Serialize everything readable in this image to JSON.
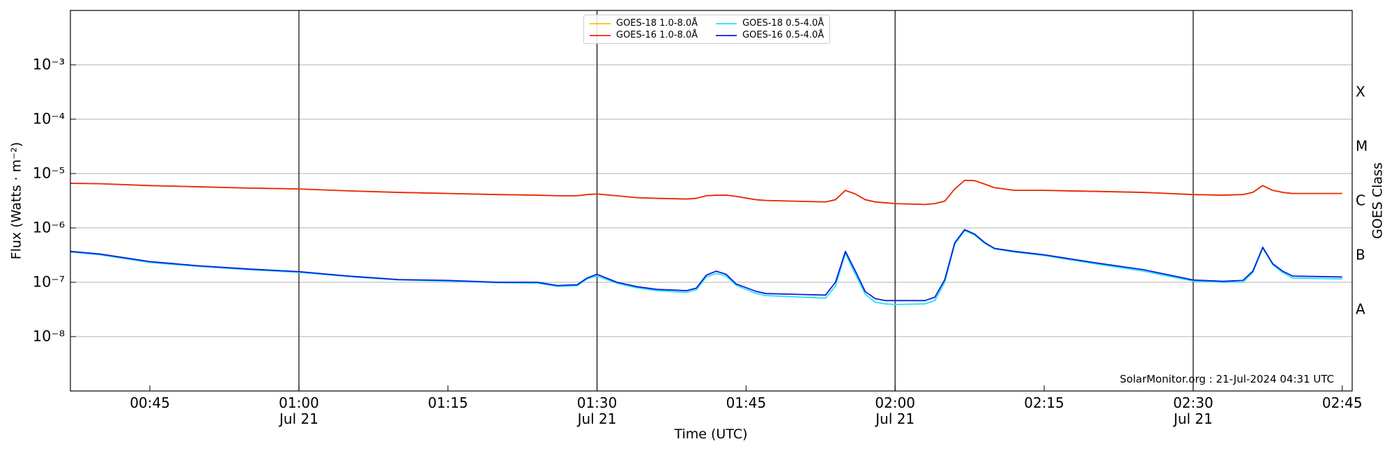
{
  "chart_data": {
    "type": "line",
    "xlabel": "Time (UTC)",
    "ylabel": "Flux (Watts · m⁻²)",
    "y2label": "GOES Class",
    "annotation": "SolarMonitor.org : 21-Jul-2024 04:31 UTC",
    "log_y": true,
    "grid": true,
    "legend": "upper center",
    "xlim": [
      "00:37",
      "02:46"
    ],
    "xticks": [
      "00:45",
      {
        "value": "01:00",
        "label": "01:00\nJul 21"
      },
      "01:15",
      {
        "value": "01:30",
        "label": "01:30\nJul 21"
      },
      "01:45",
      {
        "value": "02:00",
        "label": "02:00\nJul 21"
      },
      "02:15",
      {
        "value": "02:30",
        "label": "02:30\nJul 21"
      },
      "02:45"
    ],
    "vlines": [
      "01:00",
      "01:30",
      "02:00",
      "02:30"
    ],
    "ylim": [
      1e-09,
      0.01
    ],
    "yticks": [
      {
        "value": 1e-08,
        "label": "10⁻⁸"
      },
      {
        "value": 1e-07,
        "label": "10⁻⁷"
      },
      {
        "value": 1e-06,
        "label": "10⁻⁶"
      },
      {
        "value": 1e-05,
        "label": "10⁻⁵"
      },
      {
        "value": 0.0001,
        "label": "10⁻⁴"
      },
      {
        "value": 0.001,
        "label": "10⁻³"
      }
    ],
    "y2lim": [
      1e-09,
      0.01
    ],
    "y2ticks": [
      {
        "value": 3.162e-08,
        "label": "A"
      },
      {
        "value": 3.162e-07,
        "label": "B"
      },
      {
        "value": 3.162e-06,
        "label": "C"
      },
      {
        "value": 3.162e-05,
        "label": "M"
      },
      {
        "value": 0.0003162,
        "label": "X"
      }
    ],
    "x": [
      "00:37",
      "00:40",
      "00:45",
      "00:50",
      "00:55",
      "01:00",
      "01:05",
      "01:10",
      "01:15",
      "01:20",
      "01:24",
      "01:26",
      "01:28",
      "01:29",
      "01:30",
      "01:32",
      "01:34",
      "01:36",
      "01:39",
      "01:40",
      "01:41",
      "01:42",
      "01:43",
      "01:44",
      "01:46",
      "01:47",
      "01:53",
      "01:54",
      "01:55",
      "01:56",
      "01:57",
      "01:58",
      "01:59",
      "02:00",
      "02:03",
      "02:04",
      "02:05",
      "02:06",
      "02:07",
      "02:08",
      "02:09",
      "02:10",
      "02:12",
      "02:15",
      "02:20",
      "02:25",
      "02:30",
      "02:33",
      "02:35",
      "02:36",
      "02:37",
      "02:38",
      "02:39",
      "02:40",
      "02:45"
    ],
    "series": [
      {
        "name": "GOES-18 1.0-8.0Å",
        "color": "#ffc000",
        "values": [
          6.6e-06,
          6.5e-06,
          6e-06,
          5.7e-06,
          5.4e-06,
          5.2e-06,
          4.8e-06,
          4.5e-06,
          4.3e-06,
          4.1e-06,
          4e-06,
          3.9e-06,
          3.9e-06,
          4.1e-06,
          4.2e-06,
          3.9e-06,
          3.6e-06,
          3.5e-06,
          3.4e-06,
          3.5e-06,
          3.9e-06,
          4e-06,
          4e-06,
          3.8e-06,
          3.3e-06,
          3.2e-06,
          3e-06,
          3.3e-06,
          4.9e-06,
          4.2e-06,
          3.3e-06,
          3e-06,
          2.9e-06,
          2.8e-06,
          2.7e-06,
          2.8e-06,
          3.1e-06,
          5.2e-06,
          7.5e-06,
          7.4e-06,
          6.4e-06,
          5.5e-06,
          4.9e-06,
          4.9e-06,
          4.7e-06,
          4.5e-06,
          4.1e-06,
          4e-06,
          4.1e-06,
          4.5e-06,
          6e-06,
          4.9e-06,
          4.5e-06,
          4.3e-06,
          4.3e-06
        ]
      },
      {
        "name": "GOES-16 1.0-8.0Å",
        "color": "#e8280c",
        "values": [
          6.6e-06,
          6.5e-06,
          6e-06,
          5.7e-06,
          5.4e-06,
          5.2e-06,
          4.8e-06,
          4.5e-06,
          4.3e-06,
          4.1e-06,
          4e-06,
          3.9e-06,
          3.9e-06,
          4.1e-06,
          4.2e-06,
          3.9e-06,
          3.6e-06,
          3.5e-06,
          3.4e-06,
          3.5e-06,
          3.9e-06,
          4e-06,
          4e-06,
          3.8e-06,
          3.3e-06,
          3.2e-06,
          3e-06,
          3.3e-06,
          4.9e-06,
          4.2e-06,
          3.3e-06,
          3e-06,
          2.9e-06,
          2.8e-06,
          2.7e-06,
          2.8e-06,
          3.1e-06,
          5.2e-06,
          7.5e-06,
          7.4e-06,
          6.4e-06,
          5.5e-06,
          4.9e-06,
          4.9e-06,
          4.7e-06,
          4.5e-06,
          4.1e-06,
          4e-06,
          4.1e-06,
          4.5e-06,
          6e-06,
          4.9e-06,
          4.5e-06,
          4.3e-06,
          4.3e-06
        ]
      },
      {
        "name": "GOES-18 0.5-4.0Å",
        "color": "#22e3f0",
        "values": [
          3.6e-07,
          3.2e-07,
          2.3e-07,
          1.95e-07,
          1.7e-07,
          1.52e-07,
          1.27e-07,
          1.1e-07,
          1.05e-07,
          9.8e-08,
          9.6e-08,
          8.4e-08,
          8.6e-08,
          1.15e-07,
          1.3e-07,
          9.6e-08,
          7.9e-08,
          7e-08,
          6.5e-08,
          7.3e-08,
          1.25e-07,
          1.45e-07,
          1.3e-07,
          8.8e-08,
          6.2e-08,
          5.7e-08,
          5.1e-08,
          8.5e-08,
          3.4e-07,
          1.4e-07,
          6e-08,
          4.3e-08,
          4e-08,
          3.9e-08,
          4e-08,
          4.6e-08,
          1e-07,
          5e-07,
          8.9e-07,
          7.4e-07,
          5.2e-07,
          4.1e-07,
          3.6e-07,
          3.1e-07,
          2.2e-07,
          1.6e-07,
          1.05e-07,
          1e-07,
          1e-07,
          1.5e-07,
          4.2e-07,
          2.1e-07,
          1.5e-07,
          1.2e-07,
          1.15e-07
        ]
      },
      {
        "name": "GOES-16 0.5-4.0Å",
        "color": "#0a1ee0",
        "values": [
          3.7e-07,
          3.3e-07,
          2.4e-07,
          2e-07,
          1.75e-07,
          1.57e-07,
          1.3e-07,
          1.12e-07,
          1.08e-07,
          1e-07,
          1e-07,
          8.7e-08,
          9e-08,
          1.2e-07,
          1.4e-07,
          1e-07,
          8.3e-08,
          7.4e-08,
          7e-08,
          7.8e-08,
          1.35e-07,
          1.6e-07,
          1.4e-07,
          9.3e-08,
          6.8e-08,
          6.2e-08,
          5.8e-08,
          1e-07,
          3.7e-07,
          1.6e-07,
          6.7e-08,
          5e-08,
          4.6e-08,
          4.6e-08,
          4.6e-08,
          5.3e-08,
          1.12e-07,
          5.3e-07,
          9.3e-07,
          7.7e-07,
          5.4e-07,
          4.2e-07,
          3.7e-07,
          3.2e-07,
          2.3e-07,
          1.7e-07,
          1.1e-07,
          1.04e-07,
          1.08e-07,
          1.6e-07,
          4.4e-07,
          2.2e-07,
          1.6e-07,
          1.3e-07,
          1.25e-07
        ]
      }
    ]
  }
}
